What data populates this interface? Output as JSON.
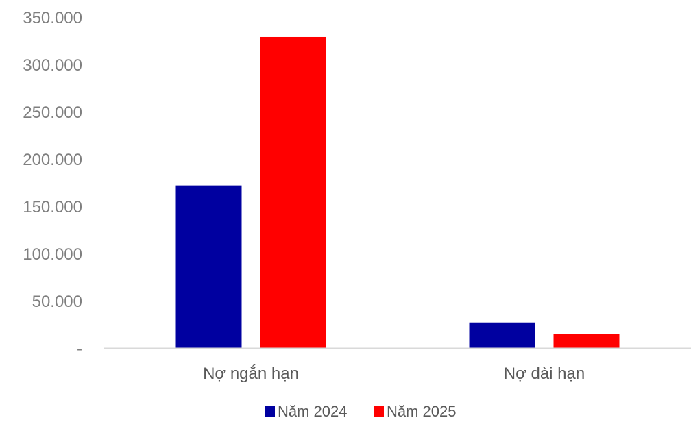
{
  "chart_data": {
    "type": "bar",
    "categories": [
      "Nợ ngắn hạn",
      "Nợ dài hạn"
    ],
    "series": [
      {
        "name": "Năm 2024",
        "color": "#0000a0",
        "values": [
          172000,
          27000
        ]
      },
      {
        "name": "Năm 2025",
        "color": "#ff0000",
        "values": [
          329000,
          15000
        ]
      }
    ],
    "ylim": [
      0,
      350000
    ],
    "yticks": [
      {
        "value": 0,
        "label": "-"
      },
      {
        "value": 50000,
        "label": "50.000"
      },
      {
        "value": 100000,
        "label": "100.000"
      },
      {
        "value": 150000,
        "label": "150.000"
      },
      {
        "value": 200000,
        "label": "200.000"
      },
      {
        "value": 250000,
        "label": "250.000"
      },
      {
        "value": 300000,
        "label": "300.000"
      },
      {
        "value": 350000,
        "label": "350.000"
      }
    ],
    "title": "",
    "xlabel": "",
    "ylabel": "",
    "grid": false,
    "legend": "bottom-center",
    "axis_color": "#d9d9d9"
  }
}
